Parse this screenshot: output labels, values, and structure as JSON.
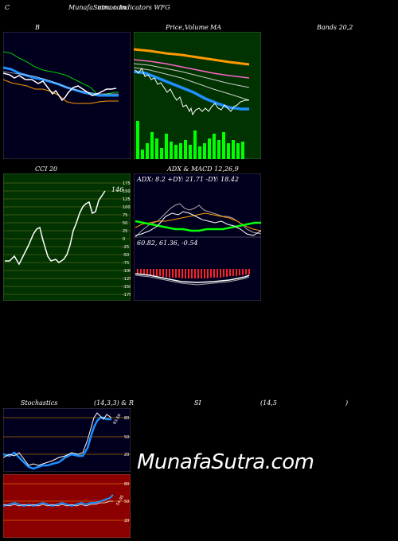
{
  "header": {
    "left": "C",
    "site": "MunafaSutra.com",
    "overlap": "Common",
    "title": "mmon Indicators WFG"
  },
  "titles": {
    "b": "B",
    "price_a": "Price,",
    "price_b": "Volume",
    "price_overlap": "Volume",
    "price_ma": "MA",
    "bands": "Bands 20,2",
    "cci": "CCI 20",
    "adx_macd": "ADX & MACD 12,26,9",
    "stoch": "Stochastics",
    "stoch_params": "(14,3,3) & R",
    "si": "SI",
    "rsi_params": "(14,5",
    "rsi_close": ")"
  },
  "adx": {
    "text": "ADX: 8.2  +DY: 21.71 -DY: 18.42"
  },
  "macd": {
    "text": "60.82,  61.36,  -0.54"
  },
  "cci": {
    "value_label": "146",
    "levels": [
      175,
      150,
      125,
      100,
      75,
      50,
      25,
      0,
      -25,
      -50,
      -75,
      -100,
      -125,
      -150,
      -175
    ]
  },
  "stoch": {
    "levels": [
      80,
      50,
      20
    ],
    "value_label": "83.69"
  },
  "rsi": {
    "levels": [
      80,
      50,
      20
    ],
    "value_label": "54.95"
  },
  "watermark": "MunafaSutra.com",
  "colors": {
    "green_panel": "#003300",
    "navy_panel": "#00001e",
    "red_panel": "#8b0000",
    "volume": "#00ff00",
    "orange": "#ff9900",
    "blue": "#1e90ff"
  }
}
